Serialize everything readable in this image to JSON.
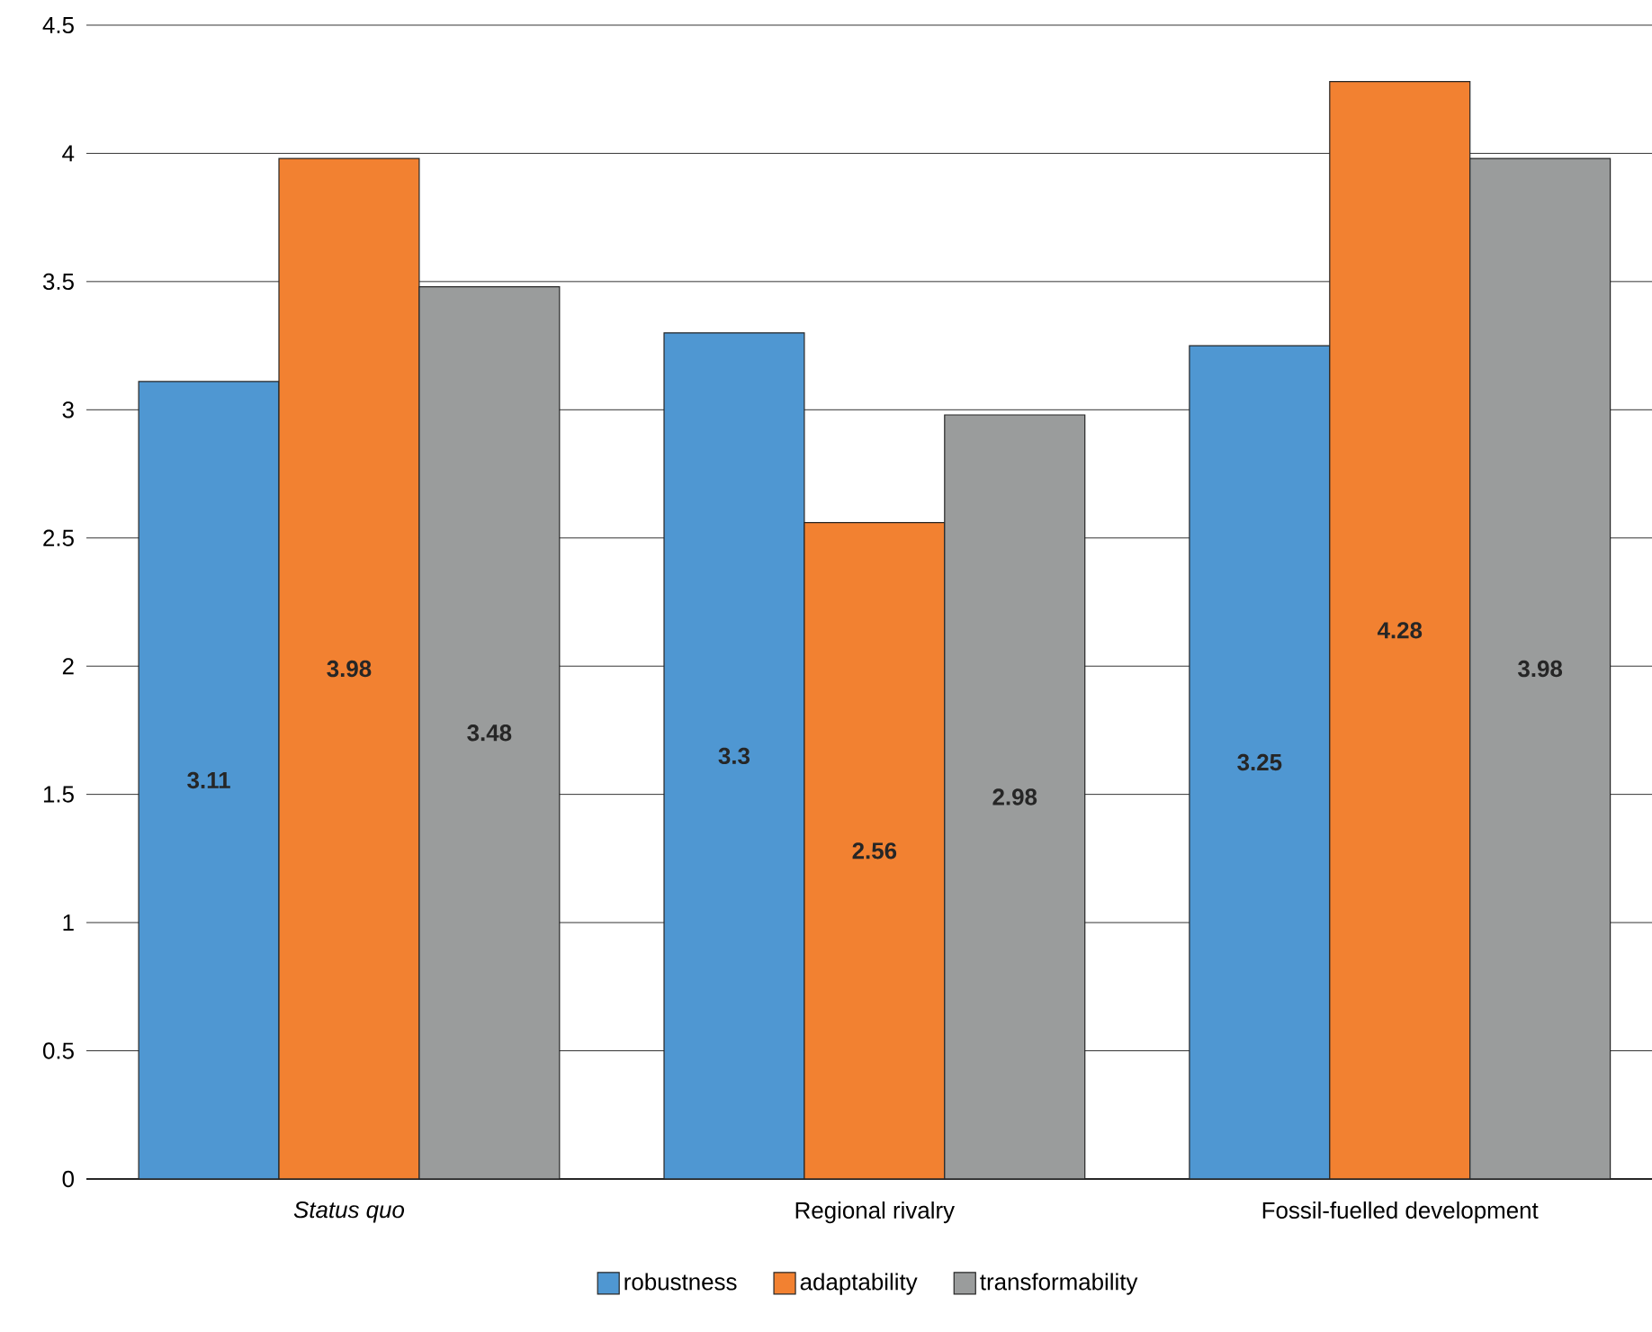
{
  "chart_data": {
    "type": "bar",
    "categories": [
      "*Status quo*",
      "Regional rivalry",
      "Fossil-fuelled development"
    ],
    "series": [
      {
        "name": "robustness",
        "color": "#4f97d2",
        "values": [
          3.11,
          3.3,
          3.25
        ]
      },
      {
        "name": "adaptability",
        "color": "#f28131",
        "values": [
          3.98,
          2.56,
          4.28
        ]
      },
      {
        "name": "transformability",
        "color": "#9a9c9c",
        "values": [
          3.48,
          2.98,
          3.98
        ]
      }
    ],
    "ylim": [
      0,
      4.5
    ],
    "yticks": [
      0,
      0.5,
      1,
      1.5,
      2,
      2.5,
      3,
      3.5,
      4,
      4.5
    ],
    "grid": "y",
    "legend": "bottom",
    "data_labels": true
  }
}
